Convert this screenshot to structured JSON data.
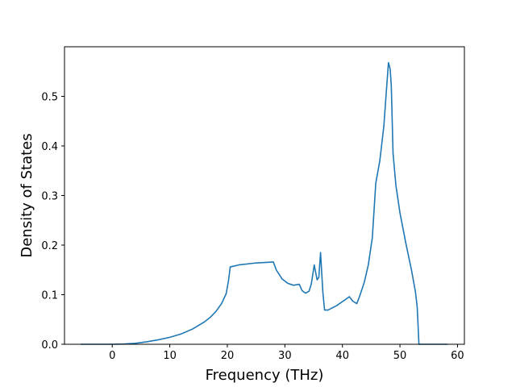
{
  "chart_data": {
    "type": "line",
    "title": "",
    "xlabel": "Frequency (THz)",
    "ylabel": "Density of States",
    "xlim": [
      -8.3,
      61.2
    ],
    "ylim": [
      0.0,
      0.6
    ],
    "xticks": [
      0,
      10,
      20,
      30,
      40,
      50,
      60
    ],
    "xtick_labels": [
      "0",
      "10",
      "20",
      "30",
      "40",
      "50",
      "60"
    ],
    "yticks": [
      0.0,
      0.1,
      0.2,
      0.3,
      0.4,
      0.5
    ],
    "ytick_labels": [
      "0.0",
      "0.1",
      "0.2",
      "0.3",
      "0.4",
      "0.5"
    ],
    "grid": false,
    "legend": "none",
    "series": [
      {
        "color": "#1f77b4",
        "points": [
          [
            -5.5,
            0.0
          ],
          [
            -3,
            0.0
          ],
          [
            0,
            0.0
          ],
          [
            2,
            0.0005
          ],
          [
            4,
            0.002
          ],
          [
            6,
            0.005
          ],
          [
            8,
            0.009
          ],
          [
            10,
            0.014
          ],
          [
            12,
            0.021
          ],
          [
            14,
            0.031
          ],
          [
            16,
            0.045
          ],
          [
            17,
            0.054
          ],
          [
            18,
            0.066
          ],
          [
            19,
            0.082
          ],
          [
            19.8,
            0.102
          ],
          [
            20.2,
            0.128
          ],
          [
            20.5,
            0.156
          ],
          [
            22,
            0.16
          ],
          [
            25,
            0.164
          ],
          [
            28,
            0.166
          ],
          [
            28.5,
            0.15
          ],
          [
            29.5,
            0.132
          ],
          [
            30.5,
            0.123
          ],
          [
            31.5,
            0.119
          ],
          [
            32.5,
            0.121
          ],
          [
            33,
            0.108
          ],
          [
            33.6,
            0.103
          ],
          [
            34.2,
            0.107
          ],
          [
            34.6,
            0.122
          ],
          [
            35.1,
            0.16
          ],
          [
            35.6,
            0.13
          ],
          [
            35.9,
            0.135
          ],
          [
            36.2,
            0.185
          ],
          [
            36.6,
            0.105
          ],
          [
            36.9,
            0.069
          ],
          [
            37.5,
            0.069
          ],
          [
            39,
            0.078
          ],
          [
            40.5,
            0.09
          ],
          [
            41.2,
            0.096
          ],
          [
            41.8,
            0.087
          ],
          [
            42.5,
            0.082
          ],
          [
            43.0,
            0.097
          ],
          [
            43.8,
            0.125
          ],
          [
            44.5,
            0.16
          ],
          [
            45.2,
            0.215
          ],
          [
            45.8,
            0.325
          ],
          [
            46.5,
            0.37
          ],
          [
            47.2,
            0.44
          ],
          [
            47.7,
            0.52
          ],
          [
            48.0,
            0.568
          ],
          [
            48.3,
            0.555
          ],
          [
            48.5,
            0.52
          ],
          [
            48.8,
            0.385
          ],
          [
            49.3,
            0.32
          ],
          [
            50,
            0.265
          ],
          [
            51,
            0.205
          ],
          [
            52,
            0.15
          ],
          [
            52.7,
            0.105
          ],
          [
            53.0,
            0.075
          ],
          [
            53.3,
            0.0
          ],
          [
            56,
            0.0
          ],
          [
            58.3,
            0.0
          ]
        ]
      }
    ]
  }
}
